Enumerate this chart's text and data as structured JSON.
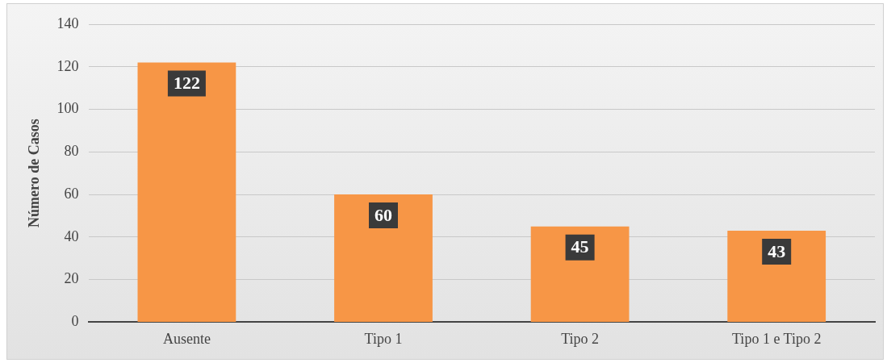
{
  "chart_data": {
    "type": "bar",
    "ylabel": "Número de Casos",
    "categories": [
      "Ausente",
      "Tipo 1",
      "Tipo 2",
      "Tipo 1 e Tipo 2"
    ],
    "values": [
      122,
      60,
      45,
      43
    ],
    "color": "#f79646",
    "ylim": [
      0,
      140
    ],
    "yticks": [
      0,
      20,
      40,
      60,
      80,
      100,
      120,
      140
    ],
    "grid": "y",
    "data_labels": true,
    "legend": false
  }
}
